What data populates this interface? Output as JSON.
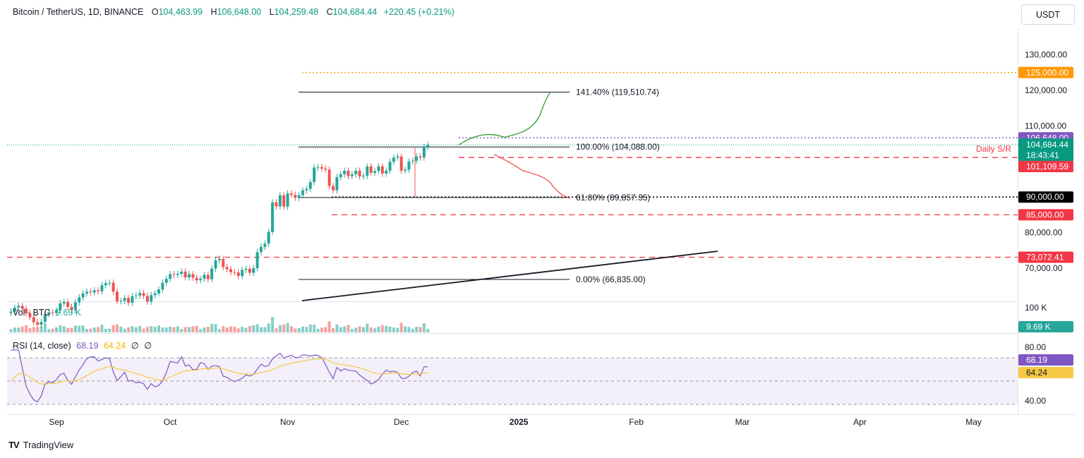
{
  "header": {
    "symbol": "Bitcoin / TetherUS, 1D, BINANCE",
    "o_label": "O",
    "o": "104,463.99",
    "h_label": "H",
    "h": "106,648.00",
    "l_label": "L",
    "l": "104,259.48",
    "c_label": "C",
    "c": "104,684.44",
    "change": "+220.45 (+0.21%)"
  },
  "currency_button": "USDT",
  "vol_pane": {
    "label": "Vol · BTC",
    "value": "9.69 K",
    "axis_label": "100 K",
    "badge": "9.69 K"
  },
  "rsi_pane": {
    "label": "RSI (14, close)",
    "rsi": "68.19",
    "ma": "64.24",
    "n1": "∅",
    "n2": "∅",
    "axis": [
      "80.00",
      "40.00"
    ],
    "badge_rsi": "68.19",
    "badge_ma": "64.24"
  },
  "footer": {
    "logo_text": "TV",
    "brand": "TradingView"
  },
  "colors": {
    "up": "#26a69a",
    "down": "#ef5350",
    "purple": "#7e57c2",
    "orange": "#ff9800",
    "red": "#f23645"
  },
  "chart_data": {
    "type": "candlestick",
    "price_axis_ticks": [
      130000,
      120000,
      110000,
      80000,
      70000
    ],
    "time_axis": [
      {
        "label": "Sep",
        "bold": false,
        "day": 0
      },
      {
        "label": "Oct",
        "bold": false,
        "day": 30
      },
      {
        "label": "Nov",
        "bold": false,
        "day": 61
      },
      {
        "label": "Dec",
        "bold": false,
        "day": 91
      },
      {
        "label": "2025",
        "bold": true,
        "day": 122
      },
      {
        "label": "Feb",
        "bold": false,
        "day": 153
      },
      {
        "label": "Mar",
        "bold": false,
        "day": 181
      },
      {
        "label": "Apr",
        "bold": false,
        "day": 212
      },
      {
        "label": "May",
        "bold": false,
        "day": 242
      }
    ],
    "ohlc_close_series": [
      57800,
      58900,
      59400,
      58600,
      57300,
      56200,
      54800,
      54100,
      54900,
      57100,
      57600,
      57400,
      58200,
      60100,
      60500,
      59100,
      58200,
      60400,
      61800,
      62900,
      63400,
      63200,
      63800,
      63500,
      65200,
      65800,
      65900,
      63400,
      60700,
      60800,
      61600,
      60300,
      62100,
      62300,
      63000,
      62200,
      60600,
      62400,
      62900,
      64000,
      65900,
      67000,
      68300,
      68100,
      68400,
      69000,
      67400,
      68300,
      67300,
      66600,
      67000,
      68100,
      66900,
      69900,
      72200,
      72600,
      70300,
      69700,
      68900,
      68800,
      67800,
      69500,
      69800,
      68700,
      70000,
      74500,
      76000,
      76900,
      80200,
      88500,
      87400,
      90500,
      87300,
      91000,
      90600,
      89800,
      90500,
      91900,
      92300,
      94200,
      98300,
      98400,
      98000,
      97700,
      93100,
      91900,
      95600,
      96400,
      97400,
      95900,
      96400,
      97400,
      95800,
      96000,
      98600,
      96800,
      97300,
      98600,
      96600,
      97400,
      99900,
      101100,
      101400,
      97400,
      97700,
      100000,
      100200,
      101400,
      101100,
      104100,
      104684
    ],
    "price_labels": [
      {
        "text": "125,000.00",
        "value": 125000,
        "color": "#ff9800",
        "style": "dotted"
      },
      {
        "text": "106,648.00",
        "value": 106648,
        "color": "#7e57c2",
        "style": "dotted"
      },
      {
        "text": "104,684.44",
        "value": 104684.44,
        "color": "#089981",
        "countdown": "18:43:41"
      },
      {
        "text": "101,109.59",
        "value": 101109.59,
        "color": "#f23645",
        "style": "dashed"
      },
      {
        "text": "90,000.00",
        "value": 90000,
        "color": "#000000",
        "style": "dotted"
      },
      {
        "text": "85,000.00",
        "value": 85000,
        "color": "#f23645",
        "style": "dashed"
      },
      {
        "text": "73,072.41",
        "value": 73072.41,
        "color": "#f23645",
        "style": "dashed"
      }
    ],
    "fib_levels": [
      {
        "label": "141.40% (119,510.74)",
        "value": 119510.74
      },
      {
        "label": "100.00% (104,088.00)",
        "value": 104088
      },
      {
        "label": "61.80% (89,857.35)",
        "value": 89857.35
      },
      {
        "label": "0.00% (66,835.00)",
        "value": 66835
      }
    ],
    "annotations": [
      "Daily S/R"
    ]
  }
}
